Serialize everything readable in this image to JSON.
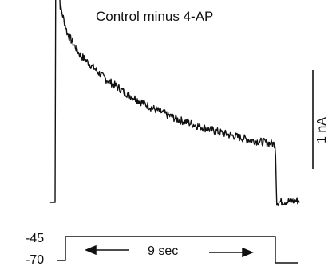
{
  "chart_data": {
    "type": "line",
    "title": "Control minus 4-AP",
    "scale_bar": {
      "value": 1,
      "unit": "nA",
      "label": "1 nA"
    },
    "current_trace": {
      "description_points": [
        {
          "t": 0.0,
          "i": 0.0
        },
        {
          "t": 0.04,
          "i": 3.38
        },
        {
          "t": 0.2,
          "i": 2.0
        },
        {
          "t": 0.5,
          "i": 1.71
        },
        {
          "t": 1.0,
          "i": 1.5
        },
        {
          "t": 2.0,
          "i": 1.26
        },
        {
          "t": 3.0,
          "i": 1.09
        },
        {
          "t": 4.0,
          "i": 0.95
        },
        {
          "t": 5.0,
          "i": 0.84
        },
        {
          "t": 6.0,
          "i": 0.76
        },
        {
          "t": 7.0,
          "i": 0.69
        },
        {
          "t": 8.0,
          "i": 0.63
        },
        {
          "t": 9.0,
          "i": 0.59
        },
        {
          "t": 9.05,
          "i": 0.0
        },
        {
          "t": 10.0,
          "i": 0.02
        }
      ]
    },
    "voltage_protocol": {
      "levels": [
        {
          "label": "-45",
          "value": -45
        },
        {
          "label": "-70",
          "value": -70
        }
      ],
      "duration_label": "9 sec",
      "step_duration_s": 9
    }
  }
}
